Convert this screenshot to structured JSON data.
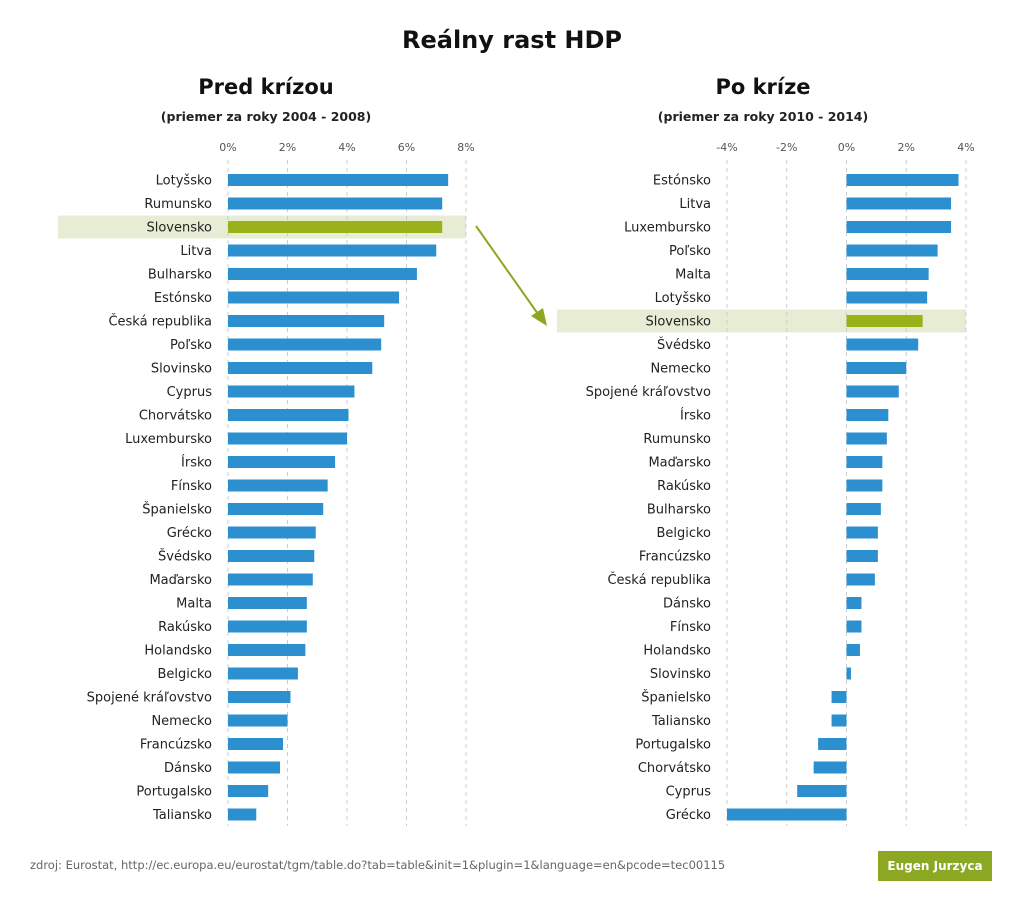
{
  "title": "Reálny rast HDP",
  "source": "zdroj: Eurostat, http://ec.europa.eu/eurostat/tgm/table.do?tab=table&init=1&plugin=1&language=en&pcode=tec00115",
  "author": "Eugen Jurzyca",
  "colors": {
    "bar": "#2b8fd0",
    "highlight_bar": "#9bb11a",
    "highlight_band": "#e7ecd5",
    "arrow": "#8ca721",
    "badge": "#8ca721",
    "grid": "#cccccc"
  },
  "chart_data": [
    {
      "type": "bar",
      "orientation": "horizontal",
      "title": "Pred krízou",
      "subtitle": "(priemer za roky 2004 - 2008)",
      "unit": "%",
      "xlim": [
        0,
        8
      ],
      "ticks": [
        0,
        2,
        4,
        6,
        8
      ],
      "tick_labels": [
        "0%",
        "2%",
        "4%",
        "6%",
        "8%"
      ],
      "highlight": "Slovensko",
      "categories": [
        "Lotyšsko",
        "Rumunsko",
        "Slovensko",
        "Litva",
        "Bulharsko",
        "Estónsko",
        "Česká republika",
        "Poľsko",
        "Slovinsko",
        "Cyprus",
        "Chorvátsko",
        "Luxembursko",
        "Írsko",
        "Fínsko",
        "Španielsko",
        "Grécko",
        "Švédsko",
        "Maďarsko",
        "Malta",
        "Rakúsko",
        "Holandsko",
        "Belgicko",
        "Spojené kráľovstvo",
        "Nemecko",
        "Francúzsko",
        "Dánsko",
        "Portugalsko",
        "Taliansko"
      ],
      "values": [
        7.4,
        7.2,
        7.2,
        7.0,
        6.35,
        5.75,
        5.25,
        5.15,
        4.85,
        4.25,
        4.05,
        4.0,
        3.6,
        3.35,
        3.2,
        2.95,
        2.9,
        2.85,
        2.65,
        2.65,
        2.6,
        2.35,
        2.1,
        2.0,
        1.85,
        1.75,
        1.35,
        0.95
      ]
    },
    {
      "type": "bar",
      "orientation": "horizontal",
      "title": "Po kríze",
      "subtitle": "(priemer za roky 2010 - 2014)",
      "unit": "%",
      "xlim": [
        -4,
        4
      ],
      "ticks": [
        -4,
        -2,
        0,
        2,
        4
      ],
      "tick_labels": [
        "-4%",
        "-2%",
        "0%",
        "2%",
        "4%"
      ],
      "highlight": "Slovensko",
      "categories": [
        "Estónsko",
        "Litva",
        "Luxembursko",
        "Poľsko",
        "Malta",
        "Lotyšsko",
        "Slovensko",
        "Švédsko",
        "Nemecko",
        "Spojené kráľovstvo",
        "Írsko",
        "Rumunsko",
        "Maďarsko",
        "Rakúsko",
        "Bulharsko",
        "Belgicko",
        "Francúzsko",
        "Česká republika",
        "Dánsko",
        "Fínsko",
        "Holandsko",
        "Slovinsko",
        "Španielsko",
        "Taliansko",
        "Portugalsko",
        "Chorvátsko",
        "Cyprus",
        "Grécko"
      ],
      "values": [
        3.75,
        3.5,
        3.5,
        3.05,
        2.75,
        2.7,
        2.55,
        2.4,
        2.0,
        1.75,
        1.4,
        1.35,
        1.2,
        1.2,
        1.15,
        1.05,
        1.05,
        0.95,
        0.5,
        0.5,
        0.45,
        0.15,
        -0.5,
        -0.5,
        -0.95,
        -1.1,
        -1.65,
        -4.0
      ]
    }
  ]
}
